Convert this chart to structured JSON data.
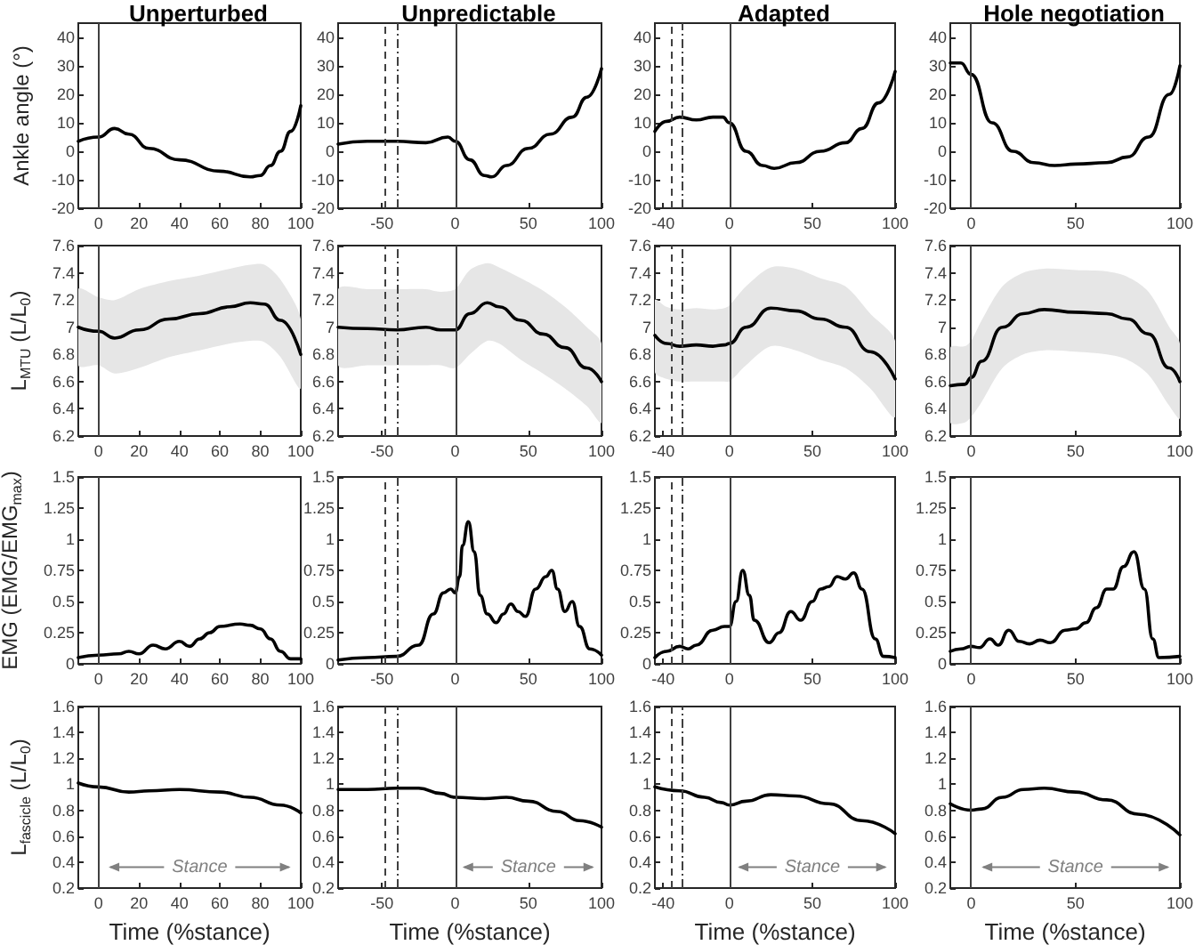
{
  "chart_data": [
    {
      "type": "line",
      "title": "Unperturbed",
      "ylabel": "Ankle angle (°)",
      "x": [
        -10,
        0,
        8,
        15,
        25,
        40,
        60,
        75,
        80,
        85,
        90,
        95,
        100
      ],
      "series": [
        {
          "color": "#000000",
          "values": [
            3.5,
            5,
            8,
            6,
            1,
            -3,
            -7,
            -9,
            -8.5,
            -5,
            0,
            7,
            16
          ]
        }
      ],
      "xlim": [
        -10,
        100
      ],
      "xticks": [
        0,
        20,
        40,
        60,
        80,
        100
      ],
      "ylim": [
        -20,
        45
      ],
      "yticks": [
        -20,
        -10,
        0,
        10,
        20,
        30,
        40
      ],
      "ref_lines": [
        {
          "axis": "x",
          "value": 0,
          "color": "#404040",
          "line_style": "solid"
        }
      ],
      "marker": "none"
    },
    {
      "type": "line",
      "title": "Unpredictable",
      "x": [
        -80,
        -60,
        -40,
        -20,
        -5,
        0,
        10,
        20,
        25,
        35,
        50,
        65,
        80,
        90,
        100
      ],
      "series": [
        {
          "color": "#000000",
          "values": [
            2.5,
            3.5,
            3.5,
            3,
            5,
            3.5,
            -3,
            -8.5,
            -9,
            -5,
            1,
            6,
            12,
            19,
            29
          ]
        }
      ],
      "xlim": [
        -80,
        100
      ],
      "xticks": [
        -50,
        0,
        50,
        100
      ],
      "ylim": [
        -20,
        45
      ],
      "yticks": [
        -20,
        -10,
        0,
        10,
        20,
        30,
        40
      ],
      "ref_lines": [
        {
          "axis": "x",
          "value": 0,
          "color": "#404040",
          "line_style": "solid"
        },
        {
          "axis": "x",
          "value": -48,
          "color": "#404040",
          "line_style": "dashed"
        },
        {
          "axis": "x",
          "value": -39,
          "color": "#404040",
          "line_style": "dashdot"
        }
      ],
      "marker": "none"
    },
    {
      "type": "line",
      "title": "Adapted",
      "x": [
        -45,
        -38,
        -30,
        -20,
        -10,
        -4,
        0,
        10,
        20,
        27,
        40,
        55,
        70,
        80,
        90,
        100
      ],
      "series": [
        {
          "color": "#000000",
          "values": [
            7,
            10.5,
            12,
            11,
            12,
            12,
            10,
            0,
            -5,
            -6,
            -4,
            0,
            3,
            8,
            17,
            28
          ]
        }
      ],
      "xlim": [
        -45,
        100
      ],
      "xticks": [
        -40,
        0,
        50,
        100
      ],
      "ylim": [
        -20,
        45
      ],
      "yticks": [
        -20,
        -10,
        0,
        10,
        20,
        30,
        40
      ],
      "ref_lines": [
        {
          "axis": "x",
          "value": 0,
          "color": "#404040",
          "line_style": "solid"
        },
        {
          "axis": "x",
          "value": -35,
          "color": "#404040",
          "line_style": "dashed"
        },
        {
          "axis": "x",
          "value": -29,
          "color": "#404040",
          "line_style": "dashdot"
        }
      ],
      "marker": "none"
    },
    {
      "type": "line",
      "title": "Hole negotiation",
      "x": [
        -10,
        -5,
        0,
        10,
        20,
        30,
        40,
        50,
        65,
        75,
        85,
        95,
        100
      ],
      "series": [
        {
          "color": "#000000",
          "values": [
            31,
            31,
            27,
            10,
            0,
            -4,
            -5,
            -4.5,
            -4,
            -2,
            5,
            20,
            30
          ]
        }
      ],
      "xlim": [
        -10,
        100
      ],
      "xticks": [
        0,
        50,
        100
      ],
      "ylim": [
        -20,
        45
      ],
      "yticks": [
        -20,
        -10,
        0,
        10,
        20,
        30,
        40
      ],
      "ref_lines": [
        {
          "axis": "x",
          "value": 0,
          "color": "#404040",
          "line_style": "solid"
        }
      ],
      "marker": "none"
    },
    {
      "type": "line",
      "ylabel": "L$_{MTU}$ (L/L$_{0}$)",
      "x": [
        -10,
        0,
        8,
        20,
        35,
        50,
        65,
        75,
        82,
        90,
        100
      ],
      "series": [
        {
          "color": "#000000",
          "values": [
            7.0,
            6.97,
            6.92,
            6.98,
            7.06,
            7.1,
            7.15,
            7.18,
            7.17,
            7.05,
            6.8
          ],
          "upper": [
            7.28,
            7.22,
            7.2,
            7.28,
            7.34,
            7.38,
            7.43,
            7.46,
            7.46,
            7.35,
            7.06
          ],
          "lower": [
            6.72,
            6.72,
            6.66,
            6.7,
            6.78,
            6.83,
            6.88,
            6.9,
            6.89,
            6.78,
            6.55
          ]
        }
      ],
      "xlim": [
        -10,
        100
      ],
      "xticks": [
        0,
        20,
        40,
        60,
        80,
        100
      ],
      "ylim": [
        6.2,
        7.6
      ],
      "yticks": [
        6.2,
        6.4,
        6.6,
        6.8,
        7,
        7.2,
        7.4,
        7.6
      ],
      "ref_lines": [
        {
          "axis": "x",
          "value": 0,
          "color": "#404040",
          "line_style": "solid"
        }
      ],
      "marker": "none"
    },
    {
      "type": "line",
      "x": [
        -80,
        -60,
        -40,
        -20,
        -10,
        0,
        10,
        22,
        30,
        45,
        60,
        75,
        90,
        100
      ],
      "series": [
        {
          "color": "#000000",
          "values": [
            7.0,
            6.99,
            6.98,
            7.0,
            6.98,
            6.98,
            7.1,
            7.18,
            7.15,
            7.05,
            6.95,
            6.85,
            6.7,
            6.6
          ],
          "upper": [
            7.28,
            7.28,
            7.28,
            7.28,
            7.26,
            7.28,
            7.42,
            7.47,
            7.44,
            7.36,
            7.27,
            7.15,
            7.0,
            6.88
          ],
          "lower": [
            6.72,
            6.72,
            6.72,
            6.72,
            6.72,
            6.7,
            6.8,
            6.9,
            6.88,
            6.76,
            6.66,
            6.55,
            6.42,
            6.3
          ]
        }
      ],
      "xlim": [
        -80,
        100
      ],
      "xticks": [
        -50,
        0,
        50,
        100
      ],
      "ylim": [
        6.2,
        7.6
      ],
      "yticks": [
        6.2,
        6.4,
        6.6,
        6.8,
        7,
        7.2,
        7.4,
        7.6
      ],
      "ref_lines": [
        {
          "axis": "x",
          "value": 0,
          "color": "#404040",
          "line_style": "solid"
        },
        {
          "axis": "x",
          "value": -48,
          "color": "#404040",
          "line_style": "dashed"
        },
        {
          "axis": "x",
          "value": -39,
          "color": "#404040",
          "line_style": "dashdot"
        }
      ],
      "marker": "none"
    },
    {
      "type": "line",
      "x": [
        -45,
        -38,
        -30,
        -20,
        -10,
        -3,
        0,
        10,
        25,
        40,
        55,
        70,
        85,
        100
      ],
      "series": [
        {
          "color": "#000000",
          "values": [
            6.94,
            6.88,
            6.86,
            6.87,
            6.86,
            6.87,
            6.88,
            7.0,
            7.14,
            7.12,
            7.06,
            7.0,
            6.82,
            6.62
          ],
          "upper": [
            7.2,
            7.15,
            7.13,
            7.14,
            7.13,
            7.14,
            7.16,
            7.3,
            7.44,
            7.43,
            7.36,
            7.3,
            7.1,
            6.9
          ],
          "lower": [
            6.67,
            6.62,
            6.6,
            6.6,
            6.6,
            6.6,
            6.6,
            6.72,
            6.86,
            6.83,
            6.76,
            6.7,
            6.55,
            6.34
          ]
        }
      ],
      "xlim": [
        -45,
        100
      ],
      "xticks": [
        -40,
        0,
        50,
        100
      ],
      "ylim": [
        6.2,
        7.6
      ],
      "yticks": [
        6.2,
        6.4,
        6.6,
        6.8,
        7,
        7.2,
        7.4,
        7.6
      ],
      "ref_lines": [
        {
          "axis": "x",
          "value": 0,
          "color": "#404040",
          "line_style": "solid"
        },
        {
          "axis": "x",
          "value": -35,
          "color": "#404040",
          "line_style": "dashed"
        },
        {
          "axis": "x",
          "value": -29,
          "color": "#404040",
          "line_style": "dashdot"
        }
      ],
      "marker": "none"
    },
    {
      "type": "line",
      "x": [
        -10,
        -3,
        0,
        5,
        15,
        25,
        35,
        50,
        65,
        75,
        85,
        95,
        100
      ],
      "series": [
        {
          "color": "#000000",
          "values": [
            6.57,
            6.58,
            6.63,
            6.75,
            7.0,
            7.1,
            7.13,
            7.11,
            7.1,
            7.06,
            6.95,
            6.7,
            6.6
          ],
          "upper": [
            6.85,
            6.86,
            6.9,
            7.05,
            7.3,
            7.4,
            7.43,
            7.42,
            7.41,
            7.37,
            7.26,
            7.0,
            6.88
          ],
          "lower": [
            6.3,
            6.3,
            6.34,
            6.45,
            6.7,
            6.8,
            6.83,
            6.82,
            6.8,
            6.76,
            6.65,
            6.42,
            6.33
          ]
        }
      ],
      "xlim": [
        -10,
        100
      ],
      "xticks": [
        0,
        50,
        100
      ],
      "ylim": [
        6.2,
        7.6
      ],
      "yticks": [
        6.2,
        6.4,
        6.6,
        6.8,
        7,
        7.2,
        7.4,
        7.6
      ],
      "ref_lines": [
        {
          "axis": "x",
          "value": 0,
          "color": "#404040",
          "line_style": "solid"
        }
      ],
      "marker": "none"
    },
    {
      "type": "line",
      "ylabel": "EMG (EMG/EMG$_{max}$)",
      "x": [
        -10,
        0,
        10,
        15,
        20,
        27,
        33,
        40,
        45,
        50,
        55,
        60,
        70,
        75,
        80,
        85,
        90,
        95,
        100
      ],
      "series": [
        {
          "color": "#000000",
          "values": [
            0.05,
            0.07,
            0.08,
            0.1,
            0.08,
            0.15,
            0.12,
            0.18,
            0.14,
            0.2,
            0.25,
            0.3,
            0.32,
            0.31,
            0.28,
            0.2,
            0.1,
            0.04,
            0.04
          ]
        }
      ],
      "xlim": [
        -10,
        100
      ],
      "xticks": [
        0,
        20,
        40,
        60,
        80,
        100
      ],
      "ylim": [
        0,
        1.5
      ],
      "yticks": [
        0,
        0.25,
        0.5,
        0.75,
        1,
        1.25,
        1.5
      ],
      "ref_lines": [
        {
          "axis": "x",
          "value": 0,
          "color": "#404040",
          "line_style": "solid"
        }
      ],
      "marker": "none"
    },
    {
      "type": "line",
      "x": [
        -80,
        -60,
        -40,
        -25,
        -15,
        -8,
        -3,
        0,
        3,
        5,
        9,
        13,
        17,
        22,
        28,
        33,
        38,
        43,
        48,
        55,
        62,
        66,
        70,
        75,
        80,
        85,
        92,
        100
      ],
      "series": [
        {
          "color": "#000000",
          "values": [
            0.03,
            0.05,
            0.06,
            0.15,
            0.4,
            0.57,
            0.6,
            0.57,
            0.7,
            0.95,
            1.14,
            0.9,
            0.55,
            0.4,
            0.33,
            0.4,
            0.48,
            0.42,
            0.38,
            0.6,
            0.7,
            0.75,
            0.6,
            0.42,
            0.5,
            0.3,
            0.12,
            0.07
          ]
        }
      ],
      "xlim": [
        -80,
        100
      ],
      "xticks": [
        -50,
        0,
        50,
        100
      ],
      "ylim": [
        0,
        1.5
      ],
      "yticks": [
        0,
        0.25,
        0.5,
        0.75,
        1,
        1.25,
        1.5
      ],
      "ref_lines": [
        {
          "axis": "x",
          "value": 0,
          "color": "#404040",
          "line_style": "solid"
        },
        {
          "axis": "x",
          "value": -48,
          "color": "#404040",
          "line_style": "dashed"
        },
        {
          "axis": "x",
          "value": -39,
          "color": "#404040",
          "line_style": "dashdot"
        }
      ],
      "marker": "none"
    },
    {
      "type": "line",
      "x": [
        -45,
        -38,
        -30,
        -25,
        -20,
        -10,
        -3,
        0,
        4,
        8,
        12,
        15,
        24,
        30,
        37,
        43,
        50,
        55,
        60,
        65,
        70,
        75,
        80,
        88,
        93,
        100
      ],
      "series": [
        {
          "color": "#000000",
          "values": [
            0.05,
            0.1,
            0.14,
            0.12,
            0.15,
            0.27,
            0.3,
            0.3,
            0.5,
            0.75,
            0.55,
            0.35,
            0.17,
            0.25,
            0.42,
            0.35,
            0.5,
            0.6,
            0.62,
            0.7,
            0.68,
            0.73,
            0.6,
            0.2,
            0.06,
            0.05
          ]
        }
      ],
      "xlim": [
        -45,
        100
      ],
      "xticks": [
        -40,
        0,
        50,
        100
      ],
      "ylim": [
        0,
        1.5
      ],
      "yticks": [
        0,
        0.25,
        0.5,
        0.75,
        1,
        1.25,
        1.5
      ],
      "ref_lines": [
        {
          "axis": "x",
          "value": 0,
          "color": "#404040",
          "line_style": "solid"
        },
        {
          "axis": "x",
          "value": -35,
          "color": "#404040",
          "line_style": "dashed"
        },
        {
          "axis": "x",
          "value": -29,
          "color": "#404040",
          "line_style": "dashdot"
        }
      ],
      "marker": "none"
    },
    {
      "type": "line",
      "x": [
        -10,
        -5,
        0,
        4,
        9,
        13,
        18,
        23,
        28,
        33,
        38,
        45,
        50,
        55,
        60,
        65,
        68,
        73,
        78,
        83,
        87,
        90,
        100
      ],
      "series": [
        {
          "color": "#000000",
          "values": [
            0.1,
            0.12,
            0.14,
            0.13,
            0.2,
            0.15,
            0.27,
            0.18,
            0.16,
            0.19,
            0.17,
            0.27,
            0.28,
            0.33,
            0.45,
            0.6,
            0.6,
            0.78,
            0.9,
            0.6,
            0.2,
            0.05,
            0.06
          ]
        }
      ],
      "xlim": [
        -10,
        100
      ],
      "xticks": [
        0,
        50,
        100
      ],
      "ylim": [
        0,
        1.5
      ],
      "yticks": [
        0,
        0.25,
        0.5,
        0.75,
        1,
        1.25,
        1.5
      ],
      "ref_lines": [
        {
          "axis": "x",
          "value": 0,
          "color": "#404040",
          "line_style": "solid"
        }
      ],
      "marker": "none"
    },
    {
      "type": "line",
      "ylabel": "L$_{fascicle}$ (L/L$_{0}$)",
      "xlabel": "Time (%stance)",
      "x": [
        -10,
        0,
        15,
        25,
        40,
        60,
        75,
        90,
        100
      ],
      "series": [
        {
          "color": "#000000",
          "values": [
            1.01,
            0.98,
            0.94,
            0.95,
            0.96,
            0.94,
            0.9,
            0.84,
            0.78
          ]
        }
      ],
      "xlim": [
        -10,
        100
      ],
      "xticks": [
        0,
        20,
        40,
        60,
        80,
        100
      ],
      "ylim": [
        0.2,
        1.6
      ],
      "yticks": [
        0.2,
        0.4,
        0.6,
        0.8,
        1,
        1.2,
        1.4,
        1.6
      ],
      "ref_lines": [
        {
          "axis": "x",
          "value": 0,
          "color": "#404040",
          "line_style": "solid"
        }
      ],
      "annotations": [
        "Stance"
      ],
      "marker": "none"
    },
    {
      "type": "line",
      "xlabel": "Time (%stance)",
      "x": [
        -80,
        -60,
        -40,
        -25,
        -10,
        0,
        20,
        35,
        50,
        70,
        85,
        100
      ],
      "series": [
        {
          "color": "#000000",
          "values": [
            0.96,
            0.96,
            0.97,
            0.97,
            0.93,
            0.9,
            0.89,
            0.9,
            0.87,
            0.79,
            0.72,
            0.67
          ]
        }
      ],
      "xlim": [
        -80,
        100
      ],
      "xticks": [
        -50,
        0,
        50,
        100
      ],
      "ylim": [
        0.2,
        1.6
      ],
      "yticks": [
        0.2,
        0.4,
        0.6,
        0.8,
        1,
        1.2,
        1.4,
        1.6
      ],
      "ref_lines": [
        {
          "axis": "x",
          "value": 0,
          "color": "#404040",
          "line_style": "solid"
        },
        {
          "axis": "x",
          "value": -48,
          "color": "#404040",
          "line_style": "dashed"
        },
        {
          "axis": "x",
          "value": -39,
          "color": "#404040",
          "line_style": "dashdot"
        }
      ],
      "annotations": [
        "Stance"
      ],
      "marker": "none"
    },
    {
      "type": "line",
      "xlabel": "Time (%stance)",
      "x": [
        -45,
        -30,
        -15,
        -5,
        0,
        10,
        25,
        40,
        60,
        80,
        100
      ],
      "series": [
        {
          "color": "#000000",
          "values": [
            0.98,
            0.95,
            0.9,
            0.86,
            0.84,
            0.87,
            0.92,
            0.91,
            0.85,
            0.72,
            0.62
          ]
        }
      ],
      "xlim": [
        -45,
        100
      ],
      "xticks": [
        -40,
        0,
        50,
        100
      ],
      "ylim": [
        0.2,
        1.6
      ],
      "yticks": [
        0.2,
        0.4,
        0.6,
        0.8,
        1,
        1.2,
        1.4,
        1.6
      ],
      "ref_lines": [
        {
          "axis": "x",
          "value": 0,
          "color": "#404040",
          "line_style": "solid"
        },
        {
          "axis": "x",
          "value": -35,
          "color": "#404040",
          "line_style": "dashed"
        },
        {
          "axis": "x",
          "value": -29,
          "color": "#404040",
          "line_style": "dashdot"
        }
      ],
      "annotations": [
        "Stance"
      ],
      "marker": "none"
    },
    {
      "type": "line",
      "xlabel": "Time (%stance)",
      "x": [
        -10,
        0,
        5,
        15,
        25,
        35,
        50,
        65,
        80,
        100
      ],
      "series": [
        {
          "color": "#000000",
          "values": [
            0.85,
            0.8,
            0.81,
            0.9,
            0.96,
            0.97,
            0.94,
            0.88,
            0.77,
            0.61
          ]
        }
      ],
      "xlim": [
        -10,
        100
      ],
      "xticks": [
        0,
        50,
        100
      ],
      "ylim": [
        0.2,
        1.6
      ],
      "yticks": [
        0.2,
        0.4,
        0.6,
        0.8,
        1,
        1.2,
        1.4,
        1.6
      ],
      "ref_lines": [
        {
          "axis": "x",
          "value": 0,
          "color": "#404040",
          "line_style": "solid"
        }
      ],
      "annotations": [
        "Stance"
      ],
      "marker": "none"
    }
  ]
}
